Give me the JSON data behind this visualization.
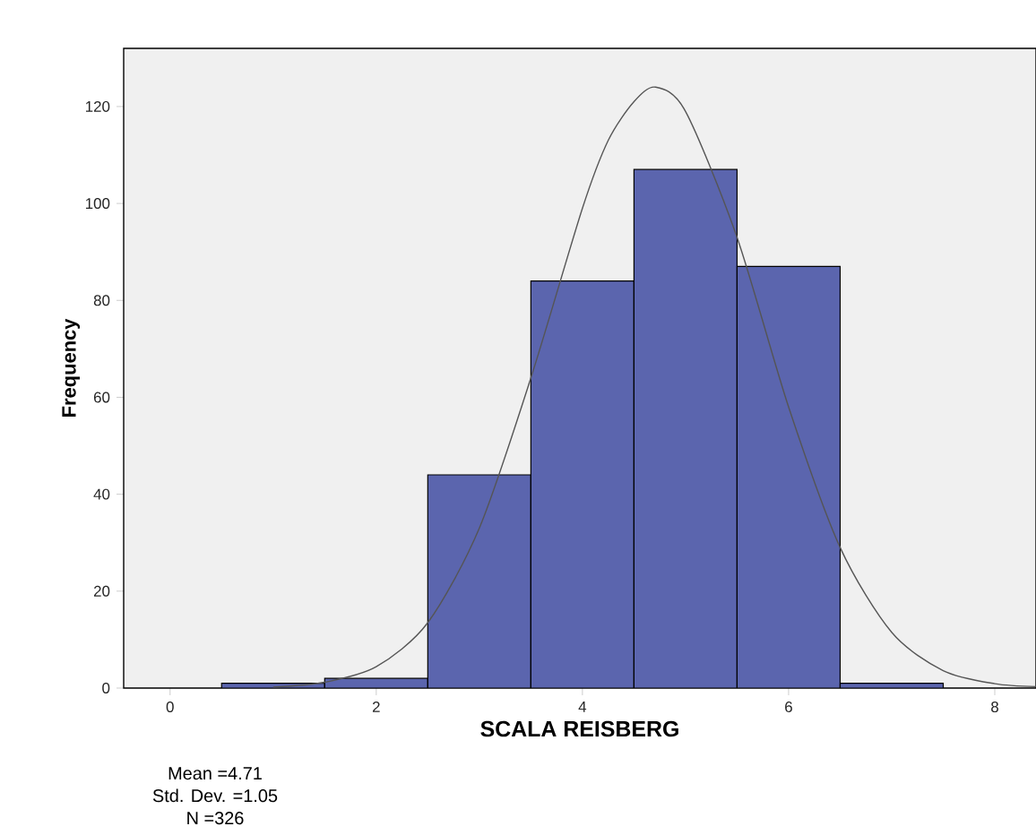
{
  "chart_data": {
    "type": "histogram",
    "xlabel": "SCALA REISBERG",
    "ylabel": "Frequency",
    "bins": [
      0.5,
      1.5,
      2.5,
      3.5,
      4.5,
      5.5,
      6.5,
      7.5
    ],
    "values": [
      1,
      2,
      44,
      84,
      107,
      87,
      1
    ],
    "color": "#5b65ae",
    "series": [
      {
        "type": "line",
        "color": "#555555",
        "x": [
          1.0,
          1.5,
          2.0,
          2.5,
          3.0,
          3.5,
          4.0,
          4.25,
          4.5,
          4.71,
          5.0,
          5.5,
          6.0,
          6.5,
          7.0,
          7.5,
          8.0,
          8.4
        ],
        "values": [
          0.2,
          1.2,
          4.4,
          13.5,
          33,
          64,
          99,
          113,
          121,
          124,
          119,
          93,
          58,
          29,
          11.5,
          3.6,
          0.9,
          0.3
        ]
      }
    ],
    "xlim": [
      -0.45,
      8.4
    ],
    "ylim": [
      0,
      132
    ],
    "xticks": [
      0,
      2,
      4,
      6,
      8
    ],
    "yticks": [
      0,
      20,
      40,
      60,
      80,
      100,
      120
    ],
    "annotations": [
      "Mean =4.71",
      "Std. Dev. =1.05",
      "N =326"
    ]
  }
}
